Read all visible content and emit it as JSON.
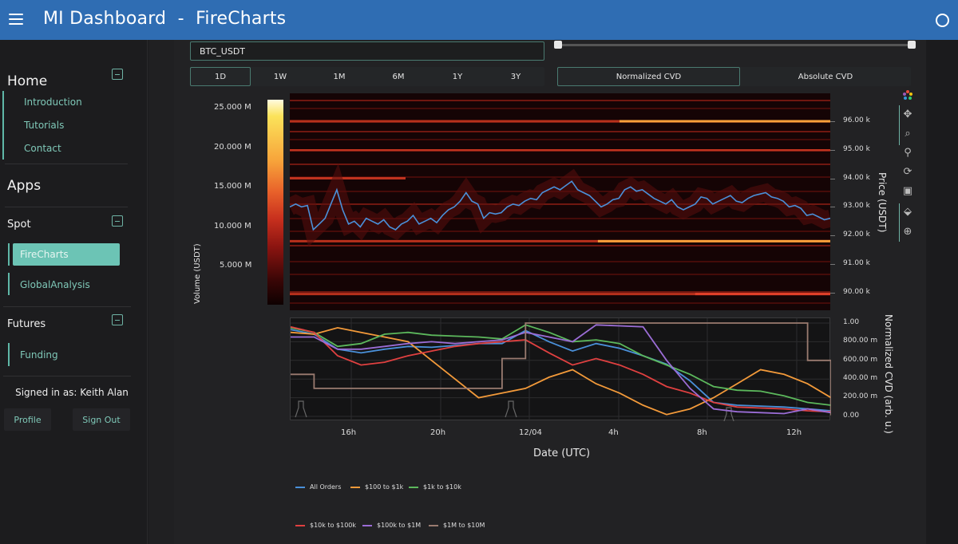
{
  "header": {
    "title": "MI Dashboard  -  FireCharts",
    "menu_icon": "hamburger-menu-icon",
    "theme_icon": "circle-toggle-icon",
    "color": "#2f6db3"
  },
  "sidebar": {
    "home": {
      "title": "Home",
      "links": [
        "Introduction",
        "Tutorials",
        "Contact"
      ]
    },
    "apps": {
      "title": "Apps"
    },
    "spot": {
      "title": "Spot",
      "links": [
        "FireCharts",
        "GlobalAnalysis"
      ],
      "active": "FireCharts"
    },
    "futures": {
      "title": "Futures",
      "links": [
        "Funding"
      ]
    },
    "signed_in": "Signed in as: Keith Alan",
    "profile_button": "Profile",
    "signout_button": "Sign Out",
    "accent": "#6cc4b5"
  },
  "controls": {
    "symbol": "BTC_USDT",
    "timeframes": [
      "1D",
      "1W",
      "1M",
      "6M",
      "1Y",
      "3Y"
    ],
    "active_timeframe": "1D",
    "cvd_modes": [
      "Normalized CVD",
      "Absolute CVD"
    ],
    "active_cvd_mode": "Normalized CVD",
    "range_slider": {
      "min": 0,
      "max": 100
    }
  },
  "heatmap": {
    "colorbar_title": "Volume (USDT)",
    "colorbar_ticks": [
      "25.000 M",
      "20.000 M",
      "15.000 M",
      "10.000 M",
      "5.000 M"
    ],
    "price_axis_title": "Price (USDT)",
    "price_ticks": [
      "96.00 k",
      "95.00 k",
      "94.00 k",
      "93.00 k",
      "92.00 k",
      "91.00 k",
      "90.00 k"
    ],
    "price_line_color": "#4a90d9",
    "price_series": [
      93.0,
      93.1,
      93.0,
      93.05,
      92.2,
      92.4,
      92.6,
      93.1,
      93.6,
      92.9,
      92.4,
      92.5,
      92.3,
      92.6,
      92.5,
      92.4,
      92.55,
      92.3,
      92.2,
      92.4,
      92.5,
      92.7,
      92.4,
      92.5,
      92.6,
      92.45,
      92.7,
      92.9,
      93.0,
      93.2,
      93.5,
      93.2,
      93.1,
      92.6,
      92.8,
      92.75,
      92.8,
      93.0,
      93.1,
      93.05,
      93.2,
      93.3,
      93.25,
      93.5,
      93.6,
      93.7,
      93.6,
      93.75,
      93.9,
      93.6,
      93.5,
      93.4,
      93.2,
      93.0,
      93.1,
      93.25,
      93.3,
      93.6,
      93.7,
      93.55,
      93.6,
      93.45,
      93.3,
      93.2,
      93.1,
      93.25,
      93.0,
      92.9,
      93.0,
      93.1,
      93.35,
      93.3,
      93.1,
      93.2,
      93.3,
      93.4,
      93.2,
      93.15,
      93.3,
      93.4,
      93.45,
      93.5,
      93.35,
      93.3,
      93.2,
      93.0,
      93.05,
      92.95,
      92.7,
      92.75,
      92.65,
      92.55,
      92.6
    ],
    "bright_levels": [
      {
        "price": 96.0,
        "start": 0.61,
        "color": "#f7a03a"
      },
      {
        "price": 91.8,
        "start": 0.57,
        "color": "#f7a03a"
      },
      {
        "price": 89.95,
        "start": 0.75,
        "color": "#e0402a"
      }
    ]
  },
  "cvd_chart": {
    "y_axis_title": "Normalized CVD (arb. u.)",
    "y_ticks": [
      "1.00",
      "800.00 m",
      "600.00 m",
      "400.00 m",
      "200.00 m",
      "0.00"
    ],
    "x_axis_title": "Date (UTC)",
    "x_ticks": [
      "16h",
      "20h",
      "12/04",
      "4h",
      "8h",
      "12h"
    ]
  },
  "chart_data": {
    "type": "line",
    "title": "Normalized CVD",
    "xlabel": "Date (UTC)",
    "ylabel": "Normalized CVD (arb. u.)",
    "ylim": [
      0,
      1
    ],
    "x": [
      "14h",
      "15h",
      "16h",
      "17h",
      "18h",
      "19h",
      "20h",
      "21h",
      "22h",
      "23h",
      "12/04",
      "1h",
      "2h",
      "3h",
      "4h",
      "5h",
      "6h",
      "7h",
      "8h",
      "9h",
      "10h",
      "11h",
      "12h",
      "13h"
    ],
    "series": [
      {
        "name": "All Orders",
        "color": "#4a90d9",
        "values": [
          0.93,
          0.88,
          0.72,
          0.68,
          0.72,
          0.75,
          0.74,
          0.76,
          0.78,
          0.78,
          0.92,
          0.8,
          0.7,
          0.78,
          0.73,
          0.65,
          0.56,
          0.38,
          0.15,
          0.12,
          0.11,
          0.1,
          0.08,
          0.06
        ]
      },
      {
        "name": "$100 to $1k",
        "color": "#f39a3a",
        "values": [
          0.9,
          0.88,
          0.95,
          0.9,
          0.85,
          0.8,
          0.6,
          0.4,
          0.2,
          0.25,
          0.3,
          0.42,
          0.5,
          0.35,
          0.25,
          0.12,
          0.02,
          0.08,
          0.2,
          0.35,
          0.5,
          0.45,
          0.35,
          0.2
        ]
      },
      {
        "name": "$1k to $10k",
        "color": "#5cb85c",
        "values": [
          0.95,
          0.9,
          0.75,
          0.78,
          0.88,
          0.9,
          0.87,
          0.86,
          0.85,
          0.83,
          0.98,
          0.9,
          0.8,
          0.82,
          0.78,
          0.65,
          0.55,
          0.45,
          0.32,
          0.28,
          0.27,
          0.22,
          0.15,
          0.12
        ]
      },
      {
        "name": "$10k to $100k",
        "color": "#e04040",
        "values": [
          0.96,
          0.9,
          0.65,
          0.55,
          0.58,
          0.65,
          0.7,
          0.75,
          0.78,
          0.8,
          0.82,
          0.68,
          0.55,
          0.62,
          0.55,
          0.45,
          0.32,
          0.25,
          0.15,
          0.1,
          0.09,
          0.08,
          0.06,
          0.05
        ]
      },
      {
        "name": "$100k to $1M",
        "color": "#9b6dd6",
        "values": [
          0.85,
          0.85,
          0.72,
          0.72,
          0.75,
          0.78,
          0.8,
          0.78,
          0.8,
          0.82,
          0.9,
          0.85,
          0.8,
          0.98,
          0.97,
          0.96,
          0.6,
          0.3,
          0.08,
          0.05,
          0.04,
          0.03,
          0.08,
          0.04
        ]
      },
      {
        "name": "$1M to $10M",
        "color": "#9a7b70",
        "values": [
          0.45,
          0.3,
          0.3,
          0.3,
          0.3,
          0.3,
          0.3,
          0.3,
          0.3,
          0.62,
          1.0,
          1.0,
          1.0,
          1.0,
          1.0,
          1.0,
          1.0,
          1.0,
          1.0,
          1.0,
          1.0,
          1.0,
          0.6,
          0.02
        ]
      }
    ],
    "legend_position": "bottom",
    "grid": true
  }
}
